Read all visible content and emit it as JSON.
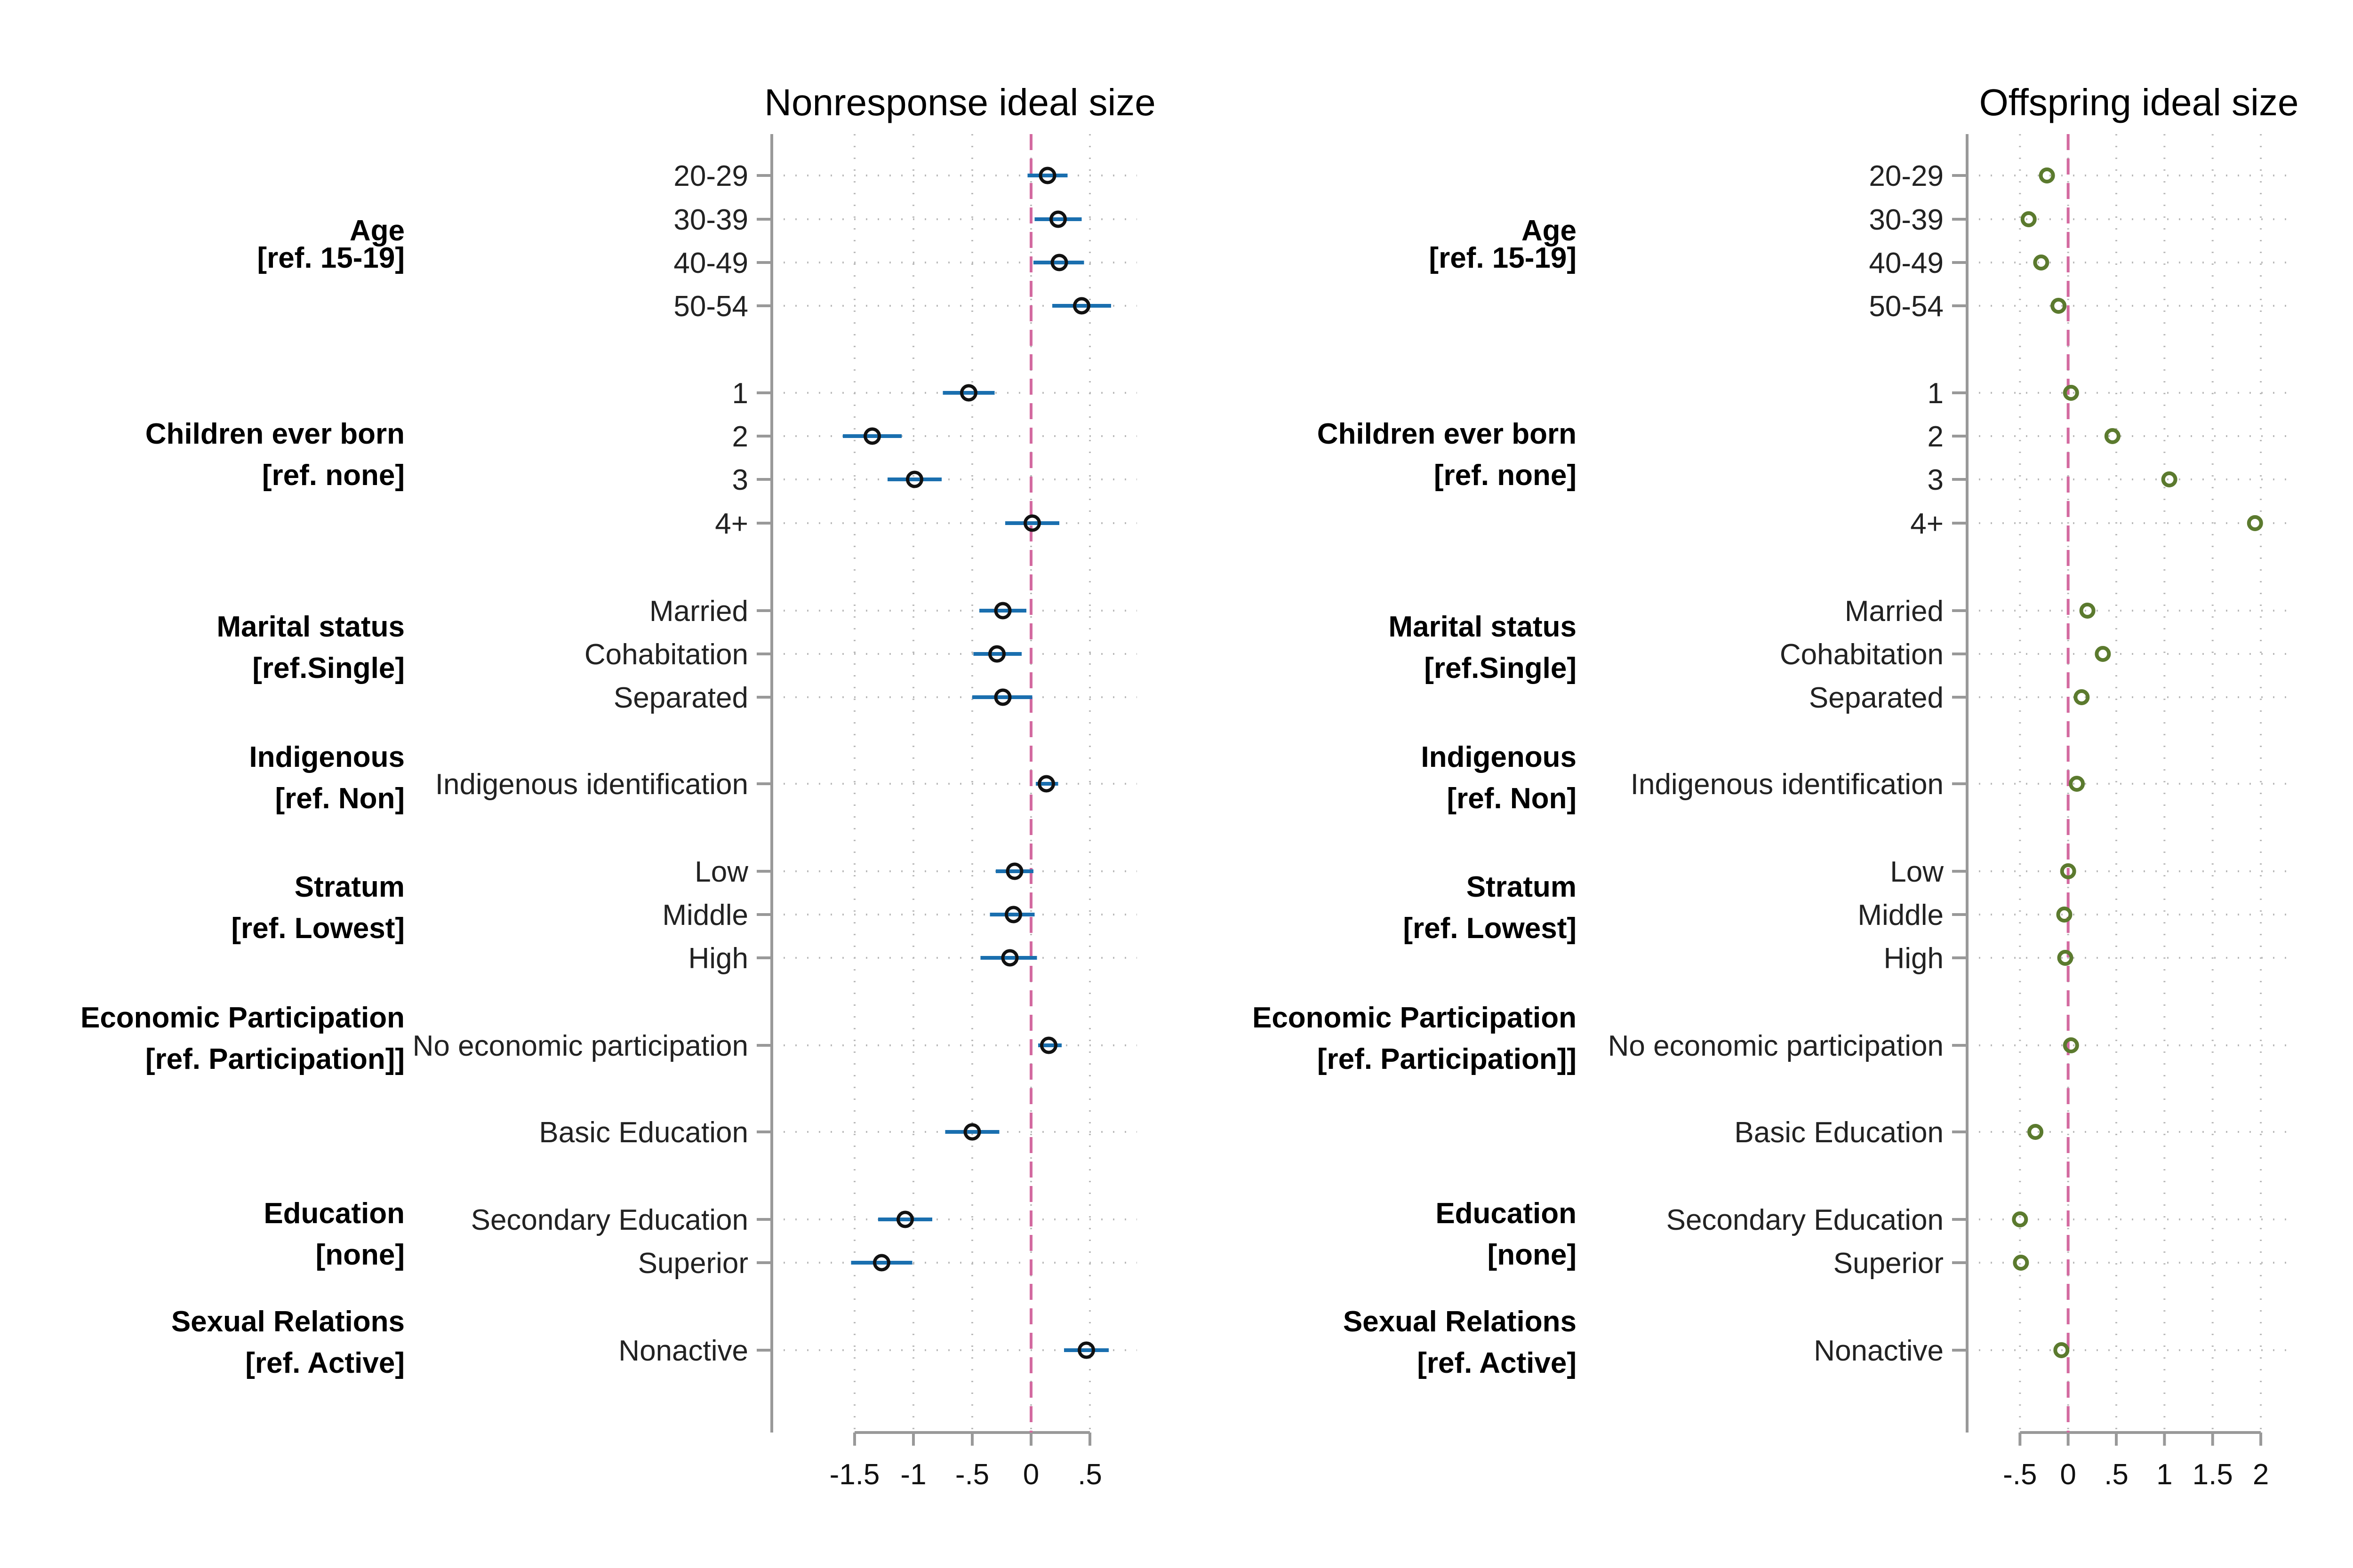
{
  "colors": {
    "ci_left": "#1a6faf",
    "marker_left": "#111111",
    "marker_right": "#5b7a2e",
    "zero_line": "#d36aa0",
    "axis": "#999999",
    "grid": "#bbbbbb"
  },
  "row_labels": [
    "20-29",
    "30-39",
    "40-49",
    "50-54",
    "1",
    "2",
    "3",
    "4+",
    "Married",
    "Cohabitation",
    "Separated",
    "Indigenous identification",
    "Low",
    "Middle",
    "High",
    "No economic participation",
    "Basic Education",
    "Secondary Education",
    "Superior",
    "Nonactive"
  ],
  "groups": [
    {
      "name": "Age",
      "ref": "[ref. 15-19]",
      "rows": [
        0,
        3
      ]
    },
    {
      "name": "Children ever born",
      "ref": "[ref. none]",
      "rows": [
        4,
        7
      ]
    },
    {
      "name": "Marital status",
      "ref": "[ref.Single]",
      "rows": [
        8,
        10
      ]
    },
    {
      "name": "Indigenous",
      "ref": "[ref. Non]",
      "rows": [
        11,
        11
      ]
    },
    {
      "name": "Stratum",
      "ref": "[ref. Lowest]",
      "rows": [
        12,
        14
      ]
    },
    {
      "name": "Economic Participation",
      "ref": "[ref. Participation]]",
      "rows": [
        15,
        15
      ]
    },
    {
      "name": "Education",
      "ref": "[none]",
      "rows": [
        17,
        18
      ]
    },
    {
      "name": "Sexual Relations",
      "ref": "[ref. Active]",
      "rows": [
        19,
        19
      ]
    }
  ],
  "chart_data": [
    {
      "type": "scatter",
      "title": "Nonresponse ideal size",
      "xlabel": "",
      "xlim": [
        -1.82,
        0.82
      ],
      "xticks": [
        -1.5,
        -1,
        -0.5,
        0,
        0.5
      ],
      "xtick_labels": [
        "-1.5",
        "-1",
        "-.5",
        "0",
        ".5"
      ],
      "ref_line": 0,
      "grid": true,
      "estimates": [
        0.14,
        0.23,
        0.24,
        0.43,
        -0.53,
        -1.35,
        -0.99,
        0.01,
        -0.24,
        -0.29,
        -0.24,
        0.13,
        -0.14,
        -0.15,
        -0.18,
        0.15,
        -0.5,
        -1.07,
        -1.27,
        0.47
      ],
      "ci_low": [
        -0.03,
        0.03,
        0.02,
        0.18,
        -0.75,
        -1.6,
        -1.22,
        -0.22,
        -0.44,
        -0.49,
        -0.5,
        0.04,
        -0.3,
        -0.35,
        -0.43,
        0.06,
        -0.73,
        -1.3,
        -1.53,
        0.28
      ],
      "ci_high": [
        0.31,
        0.43,
        0.45,
        0.68,
        -0.31,
        -1.1,
        -0.76,
        0.24,
        -0.04,
        -0.08,
        0.01,
        0.23,
        0.02,
        0.03,
        0.05,
        0.26,
        -0.27,
        -0.84,
        -1.01,
        0.66
      ]
    },
    {
      "type": "scatter",
      "title": "Offspring ideal size",
      "xlabel": "",
      "xlim": [
        -0.78,
        2.2
      ],
      "xticks": [
        -0.5,
        0,
        0.5,
        1,
        1.5,
        2
      ],
      "xtick_labels": [
        "-.5",
        "0",
        ".5",
        "1",
        "1.5",
        "2"
      ],
      "ref_line": 0,
      "grid": true,
      "estimates": [
        -0.22,
        -0.41,
        -0.28,
        -0.1,
        0.03,
        0.46,
        1.05,
        1.94,
        0.2,
        0.36,
        0.14,
        0.09,
        0.0,
        -0.04,
        -0.03,
        0.03,
        -0.34,
        -0.5,
        -0.49,
        -0.07
      ]
    }
  ]
}
